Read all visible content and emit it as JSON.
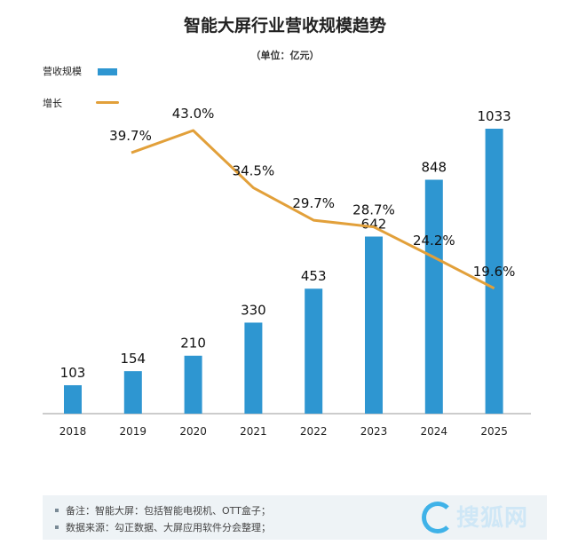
{
  "chart_data": {
    "type": "bar+line",
    "title": "智能大屏行业营收规模趋势",
    "subtitle": "（单位：亿元）",
    "categories": [
      "2018",
      "2019",
      "2020",
      "2021",
      "2022",
      "2023",
      "2024",
      "2025"
    ],
    "series": [
      {
        "name": "营收规模",
        "type": "bar",
        "color": "#2e96d1",
        "values": [
          103,
          154,
          210,
          330,
          453,
          642,
          848,
          1033
        ],
        "labels": [
          "103",
          "154",
          "210",
          "330",
          "453",
          "642",
          "848",
          "1033"
        ]
      },
      {
        "name": "增长",
        "type": "line",
        "color": "#e2a03a",
        "values": [
          null,
          39.7,
          43.0,
          34.5,
          29.7,
          28.7,
          24.2,
          19.6
        ],
        "labels": [
          "",
          "39.7%",
          "43.0%",
          "34.5%",
          "29.7%",
          "28.7%",
          "24.2%",
          "19.6%"
        ]
      }
    ],
    "bar_ylim": [
      0,
      1033
    ],
    "line_ylim": [
      0,
      50
    ],
    "grid": false,
    "legend_position": "top-left"
  },
  "notes": [
    "备注：智能大屏：包括智能电视机、OTT盒子；",
    "数据来源：勾正数据、大屏应用软件分会整理；"
  ],
  "watermark": "搜狐网"
}
